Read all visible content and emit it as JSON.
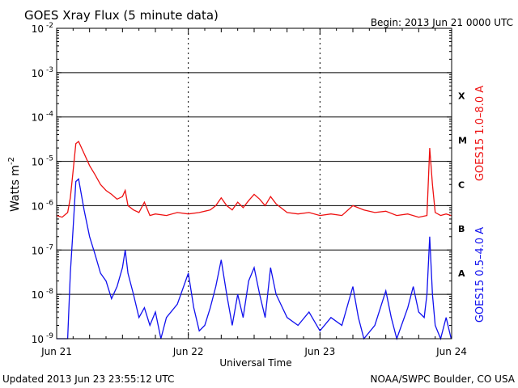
{
  "header": {
    "title": "GOES Xray Flux (5 minute data)",
    "begin": "Begin:  2013 Jun 21 0000 UTC"
  },
  "footer": {
    "updated": "Updated 2013 Jun 23 23:55:12 UTC",
    "credit": "NOAA/SWPC Boulder, CO USA"
  },
  "chart_data": {
    "type": "line",
    "title": "GOES Xray Flux (5 minute data)",
    "xlabel": "Universal Time",
    "ylabel": "Watts m-2",
    "ylabel_parts": {
      "base": "Watts m",
      "sup": "-2"
    },
    "y_scale": "log",
    "ylim": [
      1e-09,
      0.01
    ],
    "xlim": [
      "2013-06-21",
      "2013-06-24"
    ],
    "x_ticks": [
      "Jun 21",
      "Jun 22",
      "Jun 23",
      "Jun 24"
    ],
    "y_ticks": [
      {
        "value": 0.01,
        "base": "10",
        "exp": "-2"
      },
      {
        "value": 0.001,
        "base": "10",
        "exp": "-3"
      },
      {
        "value": 0.0001,
        "base": "10",
        "exp": "-4"
      },
      {
        "value": 1e-05,
        "base": "10",
        "exp": "-5"
      },
      {
        "value": 1e-06,
        "base": "10",
        "exp": "-6"
      },
      {
        "value": 1e-07,
        "base": "10",
        "exp": "-7"
      },
      {
        "value": 1e-08,
        "base": "10",
        "exp": "-8"
      },
      {
        "value": 1e-09,
        "base": "10",
        "exp": "-9"
      }
    ],
    "flare_classes": [
      {
        "label": "X",
        "value": 0.0003
      },
      {
        "label": "M",
        "value": 3e-05
      },
      {
        "label": "C",
        "value": 3e-06
      },
      {
        "label": "B",
        "value": 3e-07
      },
      {
        "label": "A",
        "value": 3e-08
      }
    ],
    "grid": true,
    "series": [
      {
        "name": "GOES15 1.0–8.0 A",
        "color": "#ee1111",
        "points": [
          [
            "2013-06-21 00:00",
            6e-07
          ],
          [
            "2013-06-21 01:00",
            5.5e-07
          ],
          [
            "2013-06-21 02:00",
            7e-07
          ],
          [
            "2013-06-21 02:30",
            1.5e-06
          ],
          [
            "2013-06-21 03:00",
            6e-06
          ],
          [
            "2013-06-21 03:30",
            2.5e-05
          ],
          [
            "2013-06-21 04:00",
            2.8e-05
          ],
          [
            "2013-06-21 05:00",
            1.5e-05
          ],
          [
            "2013-06-21 06:00",
            8e-06
          ],
          [
            "2013-06-21 07:00",
            5e-06
          ],
          [
            "2013-06-21 08:00",
            3e-06
          ],
          [
            "2013-06-21 09:00",
            2.2e-06
          ],
          [
            "2013-06-21 10:00",
            1.8e-06
          ],
          [
            "2013-06-21 11:00",
            1.4e-06
          ],
          [
            "2013-06-21 12:00",
            1.6e-06
          ],
          [
            "2013-06-21 12:30",
            2.2e-06
          ],
          [
            "2013-06-21 13:00",
            1e-06
          ],
          [
            "2013-06-21 14:00",
            8e-07
          ],
          [
            "2013-06-21 15:00",
            7e-07
          ],
          [
            "2013-06-21 16:00",
            1.2e-06
          ],
          [
            "2013-06-21 17:00",
            6e-07
          ],
          [
            "2013-06-21 18:00",
            6.5e-07
          ],
          [
            "2013-06-21 20:00",
            6e-07
          ],
          [
            "2013-06-21 22:00",
            7e-07
          ],
          [
            "2013-06-22 00:00",
            6.5e-07
          ],
          [
            "2013-06-22 02:00",
            7e-07
          ],
          [
            "2013-06-22 04:00",
            8e-07
          ],
          [
            "2013-06-22 05:00",
            1e-06
          ],
          [
            "2013-06-22 06:00",
            1.5e-06
          ],
          [
            "2013-06-22 07:00",
            1e-06
          ],
          [
            "2013-06-22 08:00",
            8e-07
          ],
          [
            "2013-06-22 09:00",
            1.2e-06
          ],
          [
            "2013-06-22 10:00",
            9e-07
          ],
          [
            "2013-06-22 11:00",
            1.3e-06
          ],
          [
            "2013-06-22 12:00",
            1.8e-06
          ],
          [
            "2013-06-22 13:00",
            1.4e-06
          ],
          [
            "2013-06-22 14:00",
            1e-06
          ],
          [
            "2013-06-22 15:00",
            1.6e-06
          ],
          [
            "2013-06-22 16:00",
            1.1e-06
          ],
          [
            "2013-06-22 18:00",
            7e-07
          ],
          [
            "2013-06-22 20:00",
            6.5e-07
          ],
          [
            "2013-06-22 22:00",
            7e-07
          ],
          [
            "2013-06-23 00:00",
            6e-07
          ],
          [
            "2013-06-23 02:00",
            6.5e-07
          ],
          [
            "2013-06-23 04:00",
            6e-07
          ],
          [
            "2013-06-23 06:00",
            1e-06
          ],
          [
            "2013-06-23 08:00",
            8e-07
          ],
          [
            "2013-06-23 10:00",
            7e-07
          ],
          [
            "2013-06-23 12:00",
            7.5e-07
          ],
          [
            "2013-06-23 14:00",
            6e-07
          ],
          [
            "2013-06-23 16:00",
            6.5e-07
          ],
          [
            "2013-06-23 18:00",
            5.5e-07
          ],
          [
            "2013-06-23 19:30",
            6e-07
          ],
          [
            "2013-06-23 20:00",
            2e-05
          ],
          [
            "2013-06-23 20:30",
            3e-06
          ],
          [
            "2013-06-23 21:00",
            7e-07
          ],
          [
            "2013-06-23 22:00",
            6e-07
          ],
          [
            "2013-06-23 23:00",
            6.5e-07
          ],
          [
            "2013-06-23 23:55",
            6e-07
          ]
        ]
      },
      {
        "name": "GOES15 0.5–4.0 A",
        "color": "#1111ee",
        "points": [
          [
            "2013-06-21 00:00",
            1e-09
          ],
          [
            "2013-06-21 02:00",
            1e-09
          ],
          [
            "2013-06-21 02:30",
            3e-08
          ],
          [
            "2013-06-21 03:00",
            3e-07
          ],
          [
            "2013-06-21 03:30",
            3.5e-06
          ],
          [
            "2013-06-21 04:00",
            4e-06
          ],
          [
            "2013-06-21 05:00",
            8e-07
          ],
          [
            "2013-06-21 06:00",
            2e-07
          ],
          [
            "2013-06-21 07:00",
            8e-08
          ],
          [
            "2013-06-21 08:00",
            3e-08
          ],
          [
            "2013-06-21 09:00",
            2e-08
          ],
          [
            "2013-06-21 10:00",
            8e-09
          ],
          [
            "2013-06-21 11:00",
            1.5e-08
          ],
          [
            "2013-06-21 12:00",
            4e-08
          ],
          [
            "2013-06-21 12:30",
            1e-07
          ],
          [
            "2013-06-21 13:00",
            3e-08
          ],
          [
            "2013-06-21 14:00",
            1e-08
          ],
          [
            "2013-06-21 15:00",
            3e-09
          ],
          [
            "2013-06-21 16:00",
            5e-09
          ],
          [
            "2013-06-21 17:00",
            2e-09
          ],
          [
            "2013-06-21 18:00",
            4e-09
          ],
          [
            "2013-06-21 19:00",
            1e-09
          ],
          [
            "2013-06-21 20:00",
            3e-09
          ],
          [
            "2013-06-21 22:00",
            6e-09
          ],
          [
            "2013-06-22 00:00",
            3e-08
          ],
          [
            "2013-06-22 01:00",
            5e-09
          ],
          [
            "2013-06-22 02:00",
            1.5e-09
          ],
          [
            "2013-06-22 03:00",
            2e-09
          ],
          [
            "2013-06-22 04:00",
            5e-09
          ],
          [
            "2013-06-22 05:00",
            1.5e-08
          ],
          [
            "2013-06-22 06:00",
            6e-08
          ],
          [
            "2013-06-22 07:00",
            1e-08
          ],
          [
            "2013-06-22 08:00",
            2e-09
          ],
          [
            "2013-06-22 09:00",
            1e-08
          ],
          [
            "2013-06-22 10:00",
            3e-09
          ],
          [
            "2013-06-22 11:00",
            2e-08
          ],
          [
            "2013-06-22 12:00",
            4e-08
          ],
          [
            "2013-06-22 13:00",
            1e-08
          ],
          [
            "2013-06-22 14:00",
            3e-09
          ],
          [
            "2013-06-22 15:00",
            4e-08
          ],
          [
            "2013-06-22 16:00",
            1e-08
          ],
          [
            "2013-06-22 18:00",
            3e-09
          ],
          [
            "2013-06-22 20:00",
            2e-09
          ],
          [
            "2013-06-22 22:00",
            4e-09
          ],
          [
            "2013-06-23 00:00",
            1.5e-09
          ],
          [
            "2013-06-23 02:00",
            3e-09
          ],
          [
            "2013-06-23 04:00",
            2e-09
          ],
          [
            "2013-06-23 06:00",
            1.5e-08
          ],
          [
            "2013-06-23 07:00",
            3e-09
          ],
          [
            "2013-06-23 08:00",
            1e-09
          ],
          [
            "2013-06-23 10:00",
            2e-09
          ],
          [
            "2013-06-23 12:00",
            1.2e-08
          ],
          [
            "2013-06-23 13:00",
            3e-09
          ],
          [
            "2013-06-23 14:00",
            1e-09
          ],
          [
            "2013-06-23 16:00",
            5e-09
          ],
          [
            "2013-06-23 17:00",
            1.5e-08
          ],
          [
            "2013-06-23 18:00",
            4e-09
          ],
          [
            "2013-06-23 19:00",
            3e-09
          ],
          [
            "2013-06-23 19:30",
            1e-08
          ],
          [
            "2013-06-23 20:00",
            2e-07
          ],
          [
            "2013-06-23 20:30",
            1e-08
          ],
          [
            "2013-06-23 21:00",
            2e-09
          ],
          [
            "2013-06-23 22:00",
            1e-09
          ],
          [
            "2013-06-23 23:00",
            3e-09
          ],
          [
            "2013-06-23 23:55",
            1e-09
          ]
        ]
      }
    ]
  }
}
